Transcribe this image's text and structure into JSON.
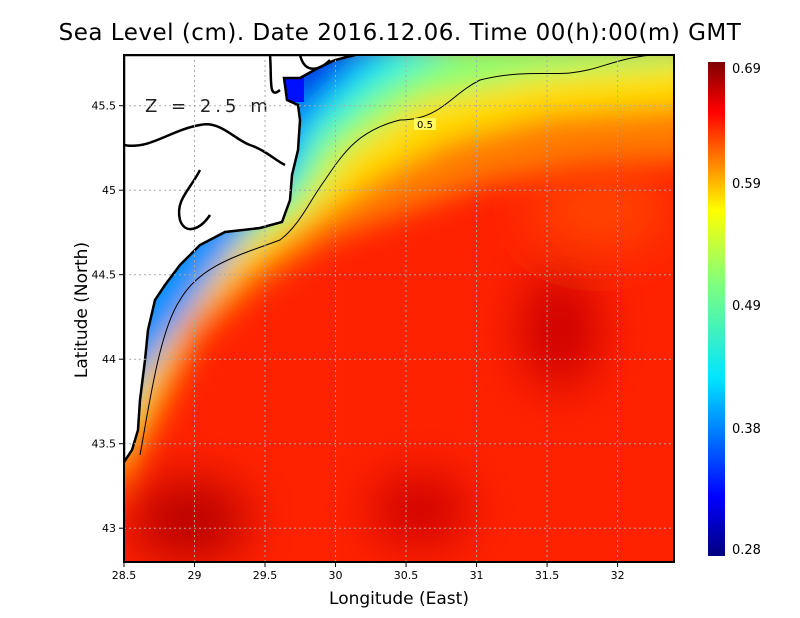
{
  "title": "Sea Level (cm). Date 2016.12.06. Time 00(h):00(m) GMT",
  "annotation": "Z = 2.5 m",
  "chart_data": {
    "type": "heatmap",
    "xlabel": "Longitude (East)",
    "ylabel": "Latitude (North)",
    "xlim": [
      28.5,
      32.4
    ],
    "ylim": [
      42.8,
      45.8
    ],
    "xticks": [
      "28.5",
      "29",
      "29.5",
      "30",
      "30.5",
      "31",
      "31.5",
      "32"
    ],
    "yticks": [
      "43",
      "43.5",
      "44",
      "44.5",
      "45",
      "45.5"
    ],
    "grid": true,
    "colormap": "jet",
    "colorbar": {
      "min": 0.28,
      "max": 0.69,
      "ticks": [
        "0.28",
        "0.38",
        "0.49",
        "0.59",
        "0.69"
      ]
    },
    "contour": {
      "level": 0.5,
      "label": "0.5"
    }
  }
}
